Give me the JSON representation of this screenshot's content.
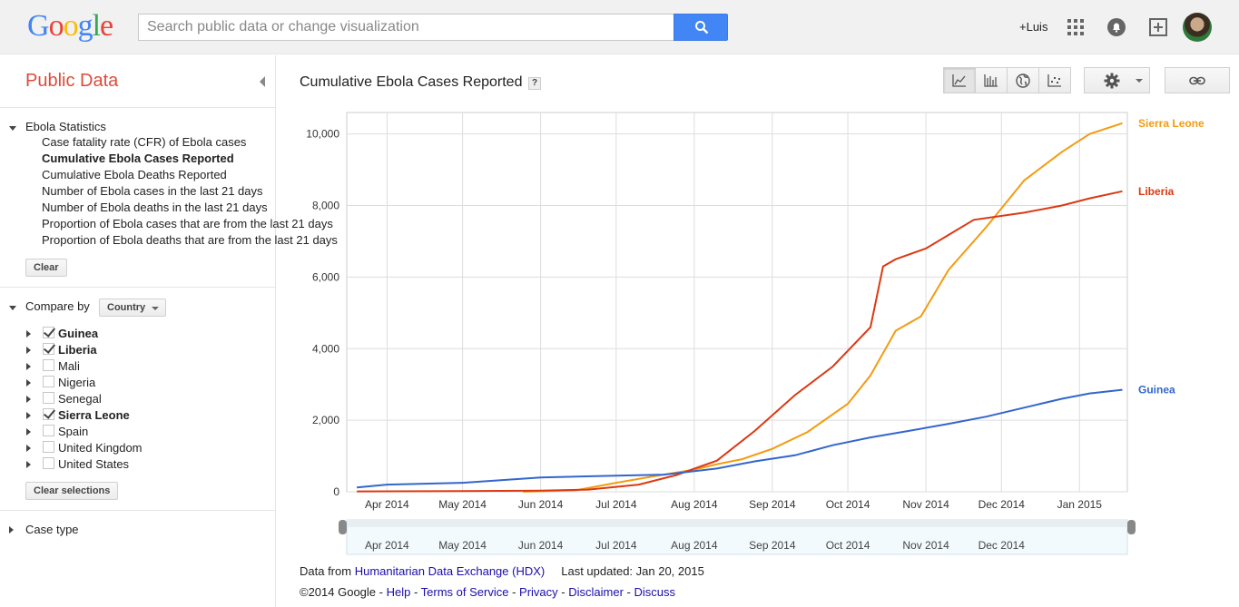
{
  "header": {
    "logo_letters": [
      {
        "ch": "G",
        "color": "#4285f4"
      },
      {
        "ch": "o",
        "color": "#ea4335"
      },
      {
        "ch": "o",
        "color": "#fbbc05"
      },
      {
        "ch": "g",
        "color": "#4285f4"
      },
      {
        "ch": "l",
        "color": "#34a853"
      },
      {
        "ch": "e",
        "color": "#ea4335"
      }
    ],
    "search_placeholder": "Search public data or change visualization",
    "user_name": "+Luis"
  },
  "sidebar": {
    "title": "Public Data",
    "section_title": "Ebola Statistics",
    "metrics": [
      {
        "label": "Case fatality rate (CFR) of Ebola cases",
        "selected": false
      },
      {
        "label": "Cumulative Ebola Cases Reported",
        "selected": true
      },
      {
        "label": "Cumulative Ebola Deaths Reported",
        "selected": false
      },
      {
        "label": "Number of Ebola cases in the last 21 days",
        "selected": false
      },
      {
        "label": "Number of Ebola deaths in the last 21 days",
        "selected": false
      },
      {
        "label": "Proportion of Ebola cases that are from the last 21 days",
        "selected": false
      },
      {
        "label": "Proportion of Ebola deaths that are from the last 21 days",
        "selected": false
      }
    ],
    "clear_label": "Clear",
    "compare_by_label": "Compare by",
    "compare_by_value": "Country",
    "countries": [
      {
        "name": "Guinea",
        "checked": true
      },
      {
        "name": "Liberia",
        "checked": true
      },
      {
        "name": "Mali",
        "checked": false
      },
      {
        "name": "Nigeria",
        "checked": false
      },
      {
        "name": "Senegal",
        "checked": false
      },
      {
        "name": "Sierra Leone",
        "checked": true
      },
      {
        "name": "Spain",
        "checked": false
      },
      {
        "name": "United Kingdom",
        "checked": false
      },
      {
        "name": "United States",
        "checked": false
      }
    ],
    "clear_selections_label": "Clear selections",
    "case_type_label": "Case type"
  },
  "main": {
    "chart_title": "Cumulative Ebola Cases Reported",
    "help_label": "?",
    "toolbar": [
      "line-chart-icon",
      "bar-chart-icon",
      "globe-map-icon",
      "scatter-chart-icon",
      "gear-icon",
      "link-icon"
    ]
  },
  "chart_data": {
    "type": "line",
    "title": "Cumulative Ebola Cases Reported",
    "x_ticks": [
      "Apr 2014",
      "May 2014",
      "Jun 2014",
      "Jul 2014",
      "Aug 2014",
      "Sep 2014",
      "Oct 2014",
      "Nov 2014",
      "Dec 2014",
      "Jan 2015"
    ],
    "range_ticks": [
      "Apr 2014",
      "May 2014",
      "Jun 2014",
      "Jul 2014",
      "Aug 2014",
      "Sep 2014",
      "Oct 2014",
      "Nov 2014",
      "Dec 2014"
    ],
    "y_ticks": [
      "0",
      "2,000",
      "4,000",
      "6,000",
      "8,000",
      "10,000"
    ],
    "ylim": [
      0,
      10600
    ],
    "series": [
      {
        "name": "Sierra Leone",
        "color": "#f39c12",
        "points": [
          [
            "2014-05-25",
            0
          ],
          [
            "2014-06-15",
            40
          ],
          [
            "2014-07-01",
            250
          ],
          [
            "2014-07-15",
            420
          ],
          [
            "2014-08-01",
            620
          ],
          [
            "2014-08-10",
            770
          ],
          [
            "2014-08-20",
            910
          ],
          [
            "2014-09-01",
            1200
          ],
          [
            "2014-09-15",
            1670
          ],
          [
            "2014-10-01",
            2460
          ],
          [
            "2014-10-10",
            3250
          ],
          [
            "2014-10-20",
            4500
          ],
          [
            "2014-10-30",
            4900
          ],
          [
            "2014-11-10",
            6200
          ],
          [
            "2014-11-25",
            7400
          ],
          [
            "2014-12-10",
            8700
          ],
          [
            "2014-12-25",
            9500
          ],
          [
            "2015-01-05",
            10000
          ],
          [
            "2015-01-18",
            10300
          ]
        ]
      },
      {
        "name": "Liberia",
        "color": "#dc3912",
        "points": [
          [
            "2014-03-20",
            10
          ],
          [
            "2014-05-01",
            20
          ],
          [
            "2014-06-01",
            30
          ],
          [
            "2014-06-20",
            60
          ],
          [
            "2014-07-10",
            200
          ],
          [
            "2014-07-25",
            470
          ],
          [
            "2014-08-10",
            870
          ],
          [
            "2014-08-25",
            1700
          ],
          [
            "2014-09-10",
            2700
          ],
          [
            "2014-09-25",
            3500
          ],
          [
            "2014-10-10",
            4600
          ],
          [
            "2014-10-15",
            6300
          ],
          [
            "2014-10-20",
            6500
          ],
          [
            "2014-11-01",
            6800
          ],
          [
            "2014-11-20",
            7600
          ],
          [
            "2014-12-10",
            7800
          ],
          [
            "2014-12-25",
            8000
          ],
          [
            "2015-01-05",
            8200
          ],
          [
            "2015-01-18",
            8400
          ]
        ]
      },
      {
        "name": "Guinea",
        "color": "#3366cc",
        "points": [
          [
            "2014-03-20",
            120
          ],
          [
            "2014-04-01",
            200
          ],
          [
            "2014-05-01",
            250
          ],
          [
            "2014-06-01",
            400
          ],
          [
            "2014-07-01",
            450
          ],
          [
            "2014-07-20",
            480
          ],
          [
            "2014-08-10",
            650
          ],
          [
            "2014-08-25",
            850
          ],
          [
            "2014-09-10",
            1020
          ],
          [
            "2014-09-25",
            1300
          ],
          [
            "2014-10-10",
            1520
          ],
          [
            "2014-10-25",
            1700
          ],
          [
            "2014-11-10",
            1900
          ],
          [
            "2014-11-25",
            2100
          ],
          [
            "2014-12-10",
            2350
          ],
          [
            "2014-12-25",
            2600
          ],
          [
            "2015-01-05",
            2750
          ],
          [
            "2015-01-18",
            2850
          ]
        ]
      }
    ]
  },
  "footer": {
    "data_from_label": "Data from",
    "source_link": "Humanitarian Data Exchange (HDX)",
    "last_updated": "Last updated: Jan 20, 2015",
    "copyright": "©2014 Google",
    "sep": " - ",
    "links": [
      "Help",
      "Terms of Service",
      "Privacy",
      "Disclaimer",
      "Discuss"
    ]
  }
}
